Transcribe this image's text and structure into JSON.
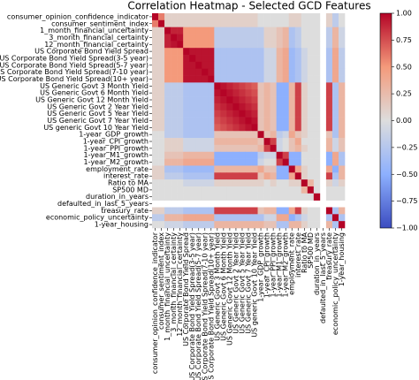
{
  "chart_data": {
    "type": "heatmap",
    "title": "Correlation Heatmap - Selected GCD Features",
    "colormap": "coolwarm",
    "categories": [
      "consumer_opinion_confidence_indicator",
      "consumer_sentiment_index",
      "1_month_financial_uncertainty",
      "3_month_financial_certainty",
      "12_month_financial_certainty",
      "US Corporate Bond Yield Spread",
      "US Corporate Bond Yield Spread(3-5 year)",
      "US Corporate Bond Yield Spread(5-7 year)",
      "US Corporate Bond Yield Spread(7-10 year)",
      "US Corporate Bond Yield Spread(10+ year)",
      "US Generic Govt 3 Month Yield",
      "US Generic Govt 6 Month Yield",
      "US Generic Govt 12 Month Yield",
      "US Generic Govt 2 Year Yield",
      "US Generic Govt 5 Year Yield",
      "US Generic Govt 7 Year Yield",
      "US generic Govt 10 Year Yield",
      "1-year_GDP_growth",
      "1-year_CPI_growth",
      "1-year_PPI_growth",
      "1-year_M1_growth",
      "1-year_M2_growth",
      "employment_rate",
      "interest_rate",
      "Ratio to MA",
      "SP500 MD",
      "duration_in_years",
      "defaulted_in_last_5_years",
      "treasury_rate",
      "economic_policy_uncertainty",
      "1-year_housing"
    ],
    "z": [
      [
        1,
        0.6,
        0.1,
        0.1,
        0.1,
        0.1,
        0.1,
        0.1,
        0.1,
        0.1,
        0.1,
        0.1,
        0.1,
        0.1,
        0.1,
        0.1,
        0.1,
        0,
        0,
        0,
        0,
        0,
        0.1,
        0.1,
        0,
        0,
        0,
        null,
        0.1,
        -0.2,
        0
      ],
      [
        0.6,
        1,
        0.1,
        0.1,
        0.1,
        0.1,
        0.1,
        0.1,
        0.1,
        0.1,
        0.1,
        0.1,
        0.1,
        0.1,
        0.1,
        0.1,
        0.1,
        0,
        0,
        0,
        0,
        0,
        0.1,
        0.1,
        0,
        0,
        0,
        null,
        0.1,
        -0.2,
        0
      ],
      [
        0.1,
        0.1,
        1,
        0.9,
        0.9,
        0.5,
        0.5,
        0.5,
        0.5,
        0.5,
        -0.2,
        -0.2,
        -0.2,
        -0.2,
        -0.2,
        -0.2,
        -0.2,
        -0.2,
        0.1,
        0.1,
        0.2,
        0.3,
        -0.3,
        -0.2,
        0,
        0,
        0,
        null,
        -0.2,
        0.3,
        -0.1
      ],
      [
        0.1,
        0.1,
        0.9,
        1,
        0.95,
        0.5,
        0.5,
        0.5,
        0.5,
        0.5,
        -0.2,
        -0.2,
        -0.2,
        -0.2,
        -0.2,
        -0.2,
        -0.2,
        -0.2,
        0.1,
        0.1,
        0.2,
        0.3,
        -0.3,
        -0.2,
        0,
        0,
        0,
        null,
        -0.2,
        0.3,
        -0.1
      ],
      [
        0.1,
        0.1,
        0.9,
        0.95,
        1,
        0.5,
        0.5,
        0.5,
        0.5,
        0.5,
        -0.2,
        -0.2,
        -0.2,
        -0.2,
        -0.2,
        -0.2,
        -0.2,
        -0.2,
        0.1,
        0.1,
        0.2,
        0.3,
        -0.3,
        -0.2,
        0,
        0,
        0,
        null,
        -0.2,
        0.3,
        -0.1
      ],
      [
        0.1,
        0.1,
        0.5,
        0.5,
        0.5,
        1,
        0.95,
        0.95,
        0.95,
        0.95,
        -0.3,
        -0.3,
        -0.3,
        -0.3,
        -0.3,
        -0.3,
        -0.3,
        -0.3,
        -0.1,
        -0.1,
        0.3,
        0.4,
        -0.4,
        -0.3,
        -0.1,
        0,
        0,
        null,
        -0.3,
        0.4,
        -0.2
      ],
      [
        0.1,
        0.1,
        0.5,
        0.5,
        0.5,
        0.95,
        1,
        0.95,
        0.95,
        0.95,
        -0.3,
        -0.3,
        -0.3,
        -0.3,
        -0.3,
        -0.3,
        -0.3,
        -0.3,
        -0.1,
        -0.1,
        0.3,
        0.4,
        -0.4,
        -0.3,
        -0.1,
        0,
        0,
        null,
        -0.3,
        0.4,
        -0.2
      ],
      [
        0.1,
        0.1,
        0.5,
        0.5,
        0.5,
        0.95,
        0.95,
        1,
        0.95,
        0.95,
        -0.3,
        -0.3,
        -0.3,
        -0.3,
        -0.3,
        -0.3,
        -0.3,
        -0.3,
        -0.1,
        -0.1,
        0.3,
        0.4,
        -0.4,
        -0.3,
        -0.1,
        0,
        0,
        null,
        -0.3,
        0.4,
        -0.2
      ],
      [
        0.1,
        0.1,
        0.5,
        0.5,
        0.5,
        0.95,
        0.95,
        0.95,
        1,
        0.95,
        -0.3,
        -0.3,
        -0.3,
        -0.3,
        -0.3,
        -0.3,
        -0.3,
        -0.3,
        -0.1,
        -0.1,
        0.3,
        0.4,
        -0.4,
        -0.3,
        -0.1,
        0,
        0,
        null,
        -0.3,
        0.4,
        -0.2
      ],
      [
        0.1,
        0.1,
        0.5,
        0.5,
        0.5,
        0.95,
        0.95,
        0.95,
        0.95,
        1,
        -0.3,
        -0.3,
        -0.3,
        -0.3,
        -0.3,
        -0.3,
        -0.3,
        -0.3,
        -0.1,
        -0.1,
        0.3,
        0.4,
        -0.4,
        -0.3,
        -0.1,
        0,
        0,
        null,
        -0.3,
        0.4,
        -0.2
      ],
      [
        0.1,
        0.1,
        -0.2,
        -0.2,
        -0.2,
        -0.3,
        -0.3,
        -0.3,
        -0.3,
        -0.3,
        1,
        0.95,
        0.9,
        0.85,
        0.8,
        0.75,
        0.7,
        0.2,
        0.3,
        0.2,
        -0.5,
        -0.5,
        0.3,
        0.8,
        0.1,
        0,
        0,
        null,
        0.8,
        -0.3,
        0.3
      ],
      [
        0.1,
        0.1,
        -0.2,
        -0.2,
        -0.2,
        -0.3,
        -0.3,
        -0.3,
        -0.3,
        -0.3,
        0.95,
        1,
        0.95,
        0.9,
        0.85,
        0.8,
        0.75,
        0.2,
        0.3,
        0.2,
        -0.5,
        -0.5,
        0.3,
        0.8,
        0.1,
        0,
        0,
        null,
        0.8,
        -0.3,
        0.3
      ],
      [
        0.1,
        0.1,
        -0.2,
        -0.2,
        -0.2,
        -0.3,
        -0.3,
        -0.3,
        -0.3,
        -0.3,
        0.9,
        0.95,
        1,
        0.95,
        0.9,
        0.85,
        0.8,
        0.2,
        0.3,
        0.2,
        -0.5,
        -0.5,
        0.3,
        0.8,
        0.1,
        0,
        0,
        null,
        0.8,
        -0.3,
        0.3
      ],
      [
        0.1,
        0.1,
        -0.2,
        -0.2,
        -0.2,
        -0.3,
        -0.3,
        -0.3,
        -0.3,
        -0.3,
        0.85,
        0.9,
        0.95,
        1,
        0.95,
        0.9,
        0.85,
        0.2,
        0.3,
        0.2,
        -0.5,
        -0.5,
        0.3,
        0.8,
        0.1,
        0,
        0,
        null,
        0.8,
        -0.3,
        0.3
      ],
      [
        0.1,
        0.1,
        -0.2,
        -0.2,
        -0.2,
        -0.3,
        -0.3,
        -0.3,
        -0.3,
        -0.3,
        0.8,
        0.85,
        0.9,
        0.95,
        1,
        0.95,
        0.9,
        0.2,
        0.3,
        0.2,
        -0.5,
        -0.5,
        0.3,
        0.8,
        0.1,
        0,
        0,
        null,
        0.8,
        -0.3,
        0.3
      ],
      [
        0.1,
        0.1,
        -0.2,
        -0.2,
        -0.2,
        -0.3,
        -0.3,
        -0.3,
        -0.3,
        -0.3,
        0.75,
        0.8,
        0.85,
        0.9,
        0.95,
        1,
        0.95,
        0.2,
        0.3,
        0.2,
        -0.5,
        -0.5,
        0.3,
        0.8,
        0.1,
        0,
        0,
        null,
        0.8,
        -0.3,
        0.3
      ],
      [
        0.1,
        0.1,
        -0.2,
        -0.2,
        -0.2,
        -0.3,
        -0.3,
        -0.3,
        -0.3,
        -0.3,
        0.7,
        0.75,
        0.8,
        0.85,
        0.9,
        0.95,
        1,
        0.2,
        0.3,
        0.2,
        -0.5,
        -0.5,
        0.3,
        0.8,
        0.1,
        0,
        0,
        null,
        0.8,
        -0.3,
        0.3
      ],
      [
        0,
        0,
        -0.2,
        -0.2,
        -0.2,
        -0.3,
        -0.3,
        -0.3,
        -0.3,
        -0.3,
        0.2,
        0.2,
        0.2,
        0.2,
        0.2,
        0.2,
        0.2,
        1,
        0.2,
        0.3,
        -0.2,
        -0.1,
        0.4,
        0.2,
        0.1,
        0,
        0,
        null,
        0.2,
        -0.3,
        0.3
      ],
      [
        0,
        0,
        0.1,
        0.1,
        0.1,
        -0.1,
        -0.1,
        -0.1,
        -0.1,
        -0.1,
        0.3,
        0.3,
        0.3,
        0.3,
        0.3,
        0.3,
        0.3,
        0.2,
        1,
        0.8,
        -0.1,
        0,
        0.2,
        0.4,
        0,
        0,
        0,
        null,
        0.3,
        -0.1,
        0.2
      ],
      [
        0,
        0,
        0.1,
        0.1,
        0.1,
        -0.1,
        -0.1,
        -0.1,
        -0.1,
        -0.1,
        0.2,
        0.2,
        0.2,
        0.2,
        0.2,
        0.2,
        0.2,
        0.3,
        0.8,
        1,
        -0.1,
        0,
        0.2,
        0.3,
        0.1,
        0,
        0,
        null,
        0.3,
        -0.1,
        0.2
      ],
      [
        0,
        0,
        0.2,
        0.2,
        0.2,
        0.3,
        0.3,
        0.3,
        0.3,
        0.3,
        -0.5,
        -0.5,
        -0.5,
        -0.5,
        -0.5,
        -0.5,
        -0.5,
        -0.2,
        -0.1,
        -0.1,
        1,
        0.8,
        -0.5,
        -0.5,
        0,
        0,
        0,
        null,
        -0.5,
        0.4,
        -0.3
      ],
      [
        0,
        0,
        0.3,
        0.3,
        0.3,
        0.4,
        0.4,
        0.4,
        0.4,
        0.4,
        -0.5,
        -0.5,
        -0.5,
        -0.5,
        -0.5,
        -0.5,
        -0.5,
        -0.1,
        0,
        0,
        0.8,
        1,
        -0.5,
        -0.5,
        0,
        0,
        0,
        null,
        -0.5,
        0.4,
        -0.3
      ],
      [
        0.1,
        0.1,
        -0.3,
        -0.3,
        -0.3,
        -0.4,
        -0.4,
        -0.4,
        -0.4,
        -0.4,
        0.3,
        0.3,
        0.3,
        0.3,
        0.3,
        0.3,
        0.3,
        0.4,
        0.2,
        0.2,
        -0.5,
        -0.5,
        1,
        0.4,
        0.1,
        0,
        0,
        null,
        0.4,
        -0.5,
        0.3
      ],
      [
        0.1,
        0.1,
        -0.2,
        -0.2,
        -0.2,
        -0.3,
        -0.3,
        -0.3,
        -0.3,
        -0.3,
        0.8,
        0.8,
        0.8,
        0.8,
        0.8,
        0.8,
        0.8,
        0.2,
        0.4,
        0.3,
        -0.5,
        -0.5,
        0.4,
        1,
        0.1,
        0,
        0,
        null,
        0.8,
        -0.3,
        0.3
      ],
      [
        0,
        0,
        0,
        0,
        0,
        -0.1,
        -0.1,
        -0.1,
        -0.1,
        -0.1,
        0.1,
        0.1,
        0.1,
        0.1,
        0.1,
        0.1,
        0.1,
        0.1,
        0,
        0.1,
        0,
        0,
        0.1,
        0.1,
        1,
        0.3,
        0,
        null,
        0.1,
        -0.1,
        0.1
      ],
      [
        0,
        0,
        0,
        0,
        0,
        0,
        0,
        0,
        0,
        0,
        0,
        0,
        0,
        0,
        0,
        0,
        0,
        0,
        0,
        0,
        0,
        0,
        0,
        0,
        0.3,
        1,
        0,
        null,
        0,
        0,
        0
      ],
      [
        0,
        0,
        0,
        0,
        0,
        0,
        0,
        0,
        0,
        0,
        0,
        0,
        0,
        0,
        0,
        0,
        0,
        0,
        0,
        0,
        0,
        0,
        0,
        0,
        0,
        0,
        1,
        null,
        0,
        0,
        0
      ],
      [
        null,
        null,
        null,
        null,
        null,
        null,
        null,
        null,
        null,
        null,
        null,
        null,
        null,
        null,
        null,
        null,
        null,
        null,
        null,
        null,
        null,
        null,
        null,
        null,
        null,
        null,
        null,
        null,
        null,
        null,
        null
      ],
      [
        0.1,
        0.1,
        -0.2,
        -0.2,
        -0.2,
        -0.3,
        -0.3,
        -0.3,
        -0.3,
        -0.3,
        0.8,
        0.8,
        0.8,
        0.8,
        0.8,
        0.8,
        0.8,
        0.2,
        0.3,
        0.3,
        -0.5,
        -0.5,
        0.4,
        0.8,
        0.1,
        0,
        0,
        null,
        1,
        -0.3,
        0.3
      ],
      [
        -0.2,
        -0.2,
        0.3,
        0.3,
        0.3,
        0.4,
        0.4,
        0.4,
        0.4,
        0.4,
        -0.3,
        -0.3,
        -0.3,
        -0.3,
        -0.3,
        -0.3,
        -0.3,
        -0.3,
        -0.1,
        -0.1,
        0.4,
        0.4,
        -0.5,
        -0.3,
        -0.1,
        0,
        0,
        null,
        -0.3,
        1,
        -0.3
      ],
      [
        0,
        0,
        -0.1,
        -0.1,
        -0.1,
        -0.2,
        -0.2,
        -0.2,
        -0.2,
        -0.2,
        0.3,
        0.3,
        0.3,
        0.3,
        0.3,
        0.3,
        0.3,
        0.3,
        0.2,
        0.2,
        -0.3,
        -0.3,
        0.3,
        0.3,
        0.1,
        0,
        0,
        null,
        0.3,
        -0.3,
        1
      ]
    ],
    "clim": [
      -1,
      1
    ],
    "cticks": [
      {
        "value": -1,
        "label": "−1.00"
      },
      {
        "value": -0.75,
        "label": "−0.75"
      },
      {
        "value": -0.5,
        "label": "−0.50"
      },
      {
        "value": -0.25,
        "label": "−0.25"
      },
      {
        "value": 0,
        "label": "0.00"
      },
      {
        "value": 0.25,
        "label": "0.25"
      },
      {
        "value": 0.5,
        "label": "0.50"
      },
      {
        "value": 0.75,
        "label": "0.75"
      },
      {
        "value": 1,
        "label": "1.00"
      }
    ]
  }
}
